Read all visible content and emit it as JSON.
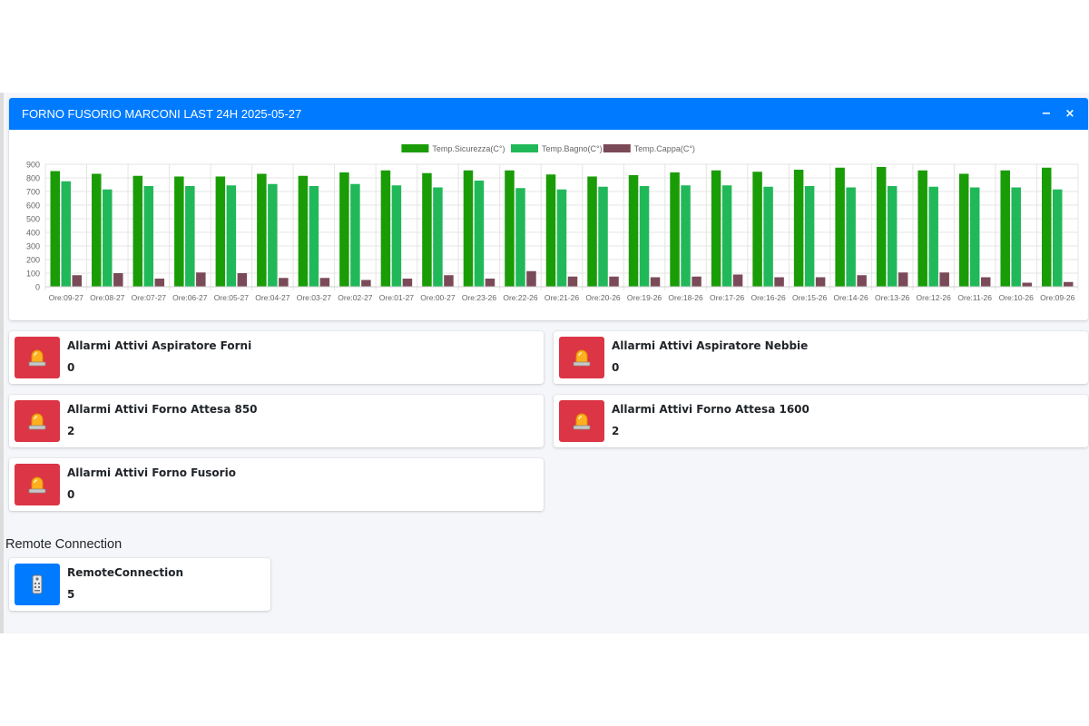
{
  "header": {
    "title": "FORNO FUSORIO MARCONI LAST 24H 2025-05-27",
    "minimize_label": "−",
    "close_label": "×"
  },
  "chart_data": {
    "type": "bar",
    "categories": [
      "Ore:09-27",
      "Ore:08-27",
      "Ore:07-27",
      "Ore:06-27",
      "Ore:05-27",
      "Ore:04-27",
      "Ore:03-27",
      "Ore:02-27",
      "Ore:01-27",
      "Ore:00-27",
      "Ore:23-26",
      "Ore:22-26",
      "Ore:21-26",
      "Ore:20-26",
      "Ore:19-26",
      "Ore:18-26",
      "Ore:17-26",
      "Ore:16-26",
      "Ore:15-26",
      "Ore:14-26",
      "Ore:13-26",
      "Ore:12-26",
      "Ore:11-26",
      "Ore:10-26",
      "Ore:09-26"
    ],
    "series": [
      {
        "name": "Temp.Sicurezza(C°)",
        "color": "#1a9c07",
        "values": [
          850,
          830,
          815,
          810,
          810,
          830,
          815,
          840,
          855,
          835,
          855,
          855,
          825,
          810,
          820,
          840,
          855,
          845,
          860,
          875,
          880,
          855,
          830,
          855,
          875
        ]
      },
      {
        "name": "Temp.Bagno(C°)",
        "color": "#21b85a",
        "values": [
          775,
          715,
          740,
          740,
          745,
          755,
          740,
          755,
          745,
          730,
          780,
          725,
          715,
          735,
          740,
          745,
          745,
          735,
          740,
          730,
          740,
          735,
          730,
          730,
          715
        ]
      },
      {
        "name": "Temp.Cappa(C°)",
        "color": "#7b4a58",
        "values": [
          85,
          100,
          60,
          105,
          100,
          65,
          65,
          50,
          60,
          85,
          60,
          115,
          75,
          75,
          70,
          75,
          90,
          70,
          70,
          85,
          105,
          105,
          70,
          30,
          35
        ]
      }
    ],
    "yticks": [
      0,
      100,
      200,
      300,
      400,
      500,
      600,
      700,
      800,
      900
    ],
    "ylim": [
      0,
      900
    ],
    "grid": true,
    "legend_position": "top-center"
  },
  "alarms": [
    {
      "label": "Allarmi Attivi Aspiratore Forni",
      "value": "0",
      "icon": "alarm-light-icon",
      "color": "#dc3545"
    },
    {
      "label": "Allarmi Attivi Aspiratore Nebbie",
      "value": "0",
      "icon": "alarm-light-icon",
      "color": "#dc3545"
    },
    {
      "label": "Allarmi Attivi Forno Attesa 850",
      "value": "2",
      "icon": "alarm-light-icon",
      "color": "#dc3545"
    },
    {
      "label": "Allarmi Attivi Forno Attesa 1600",
      "value": "2",
      "icon": "alarm-light-icon",
      "color": "#dc3545"
    },
    {
      "label": "Allarmi Attivi Forno Fusorio",
      "value": "0",
      "icon": "alarm-light-icon",
      "color": "#dc3545"
    }
  ],
  "remote": {
    "section_title": "Remote Connection",
    "label": "RemoteConnection",
    "value": "5",
    "icon": "remote-control-icon",
    "color": "#007bff"
  }
}
